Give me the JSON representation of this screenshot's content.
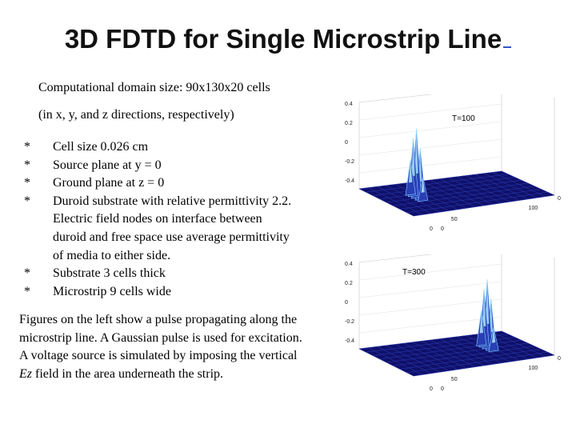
{
  "slide": {
    "title": "3D FDTD for Single Microstrip Line",
    "domain_line1": "Computational domain size:  90x130x20 cells",
    "domain_line2": "(in x, y, and z directions, respectively)",
    "bullets": [
      {
        "marker": "*",
        "lines": [
          "Cell size 0.026 cm"
        ]
      },
      {
        "marker": "*",
        "lines": [
          "Source plane at y = 0"
        ]
      },
      {
        "marker": "*",
        "lines": [
          "Ground plane at z = 0"
        ]
      },
      {
        "marker": "*",
        "lines": [
          "Duroid substrate with relative permittivity 2.2.",
          "Electric field nodes on interface between",
          "duroid and free space use average permittivity",
          "of media to either side."
        ]
      },
      {
        "marker": "*",
        "lines": [
          "Substrate 3  cells thick"
        ]
      },
      {
        "marker": "*",
        "lines": [
          "Microstrip 9  cells wide"
        ]
      }
    ],
    "caption": {
      "line1": "Figures on the left show a pulse propagating along the",
      "line2": "microstrip line. A Gaussian pulse is used for excitation.",
      "line3": "A voltage source is simulated by imposing the vertical",
      "line4_em": "Ez",
      "line4_rest": " field in the area underneath the strip."
    }
  },
  "plots": [
    {
      "label": "T=100",
      "z_ticks": [
        "0.4",
        "0.2",
        "0",
        "-0.2",
        "-0.4"
      ],
      "x_ticks": [
        "50",
        "100"
      ],
      "side_tick": "0",
      "corner_ticks": [
        "0",
        "0"
      ],
      "pulse_position": 0.22
    },
    {
      "label": "T=300",
      "z_ticks": [
        "0.4",
        "0.2",
        "0",
        "-0.2",
        "-0.4"
      ],
      "x_ticks": [
        "50",
        "100"
      ],
      "side_tick": "0",
      "corner_ticks": [
        "0",
        "0"
      ],
      "pulse_position": 0.72
    }
  ],
  "colors": {
    "surface_dark": "#10106a",
    "surface_mid": "#2a3fb5",
    "peak_light": "#7fd0ff",
    "peak_hot": "#aee6ff"
  }
}
